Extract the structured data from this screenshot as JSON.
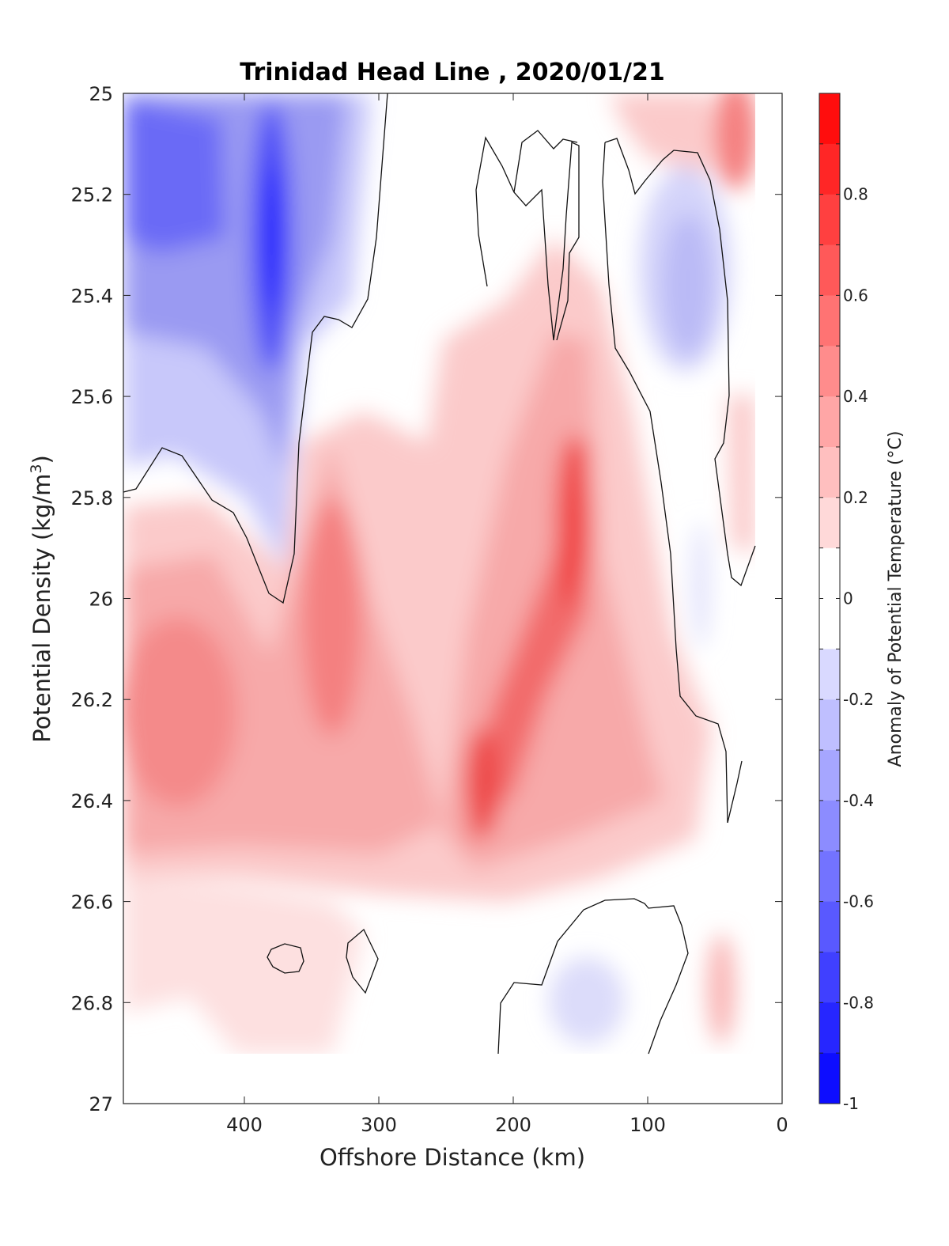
{
  "chart_data": {
    "type": "heatmap",
    "subtype": "filled-contour",
    "title": "Trinidad Head Line , 2020/01/21",
    "xlabel": "Offshore Distance (km)",
    "ylabel_text": "Potential Density (kg/m",
    "ylabel_sup": "3",
    "ylabel_close": ")",
    "xlim": [
      490,
      0
    ],
    "ylim": [
      25,
      27
    ],
    "y_reversed": true,
    "xticks": [
      "400",
      "300",
      "200",
      "100",
      "0"
    ],
    "yticks": [
      "25",
      "25.2",
      "25.4",
      "25.6",
      "25.8",
      "26",
      "26.2",
      "26.4",
      "26.6",
      "26.8",
      "27"
    ],
    "colorbar": {
      "label": "Anomaly of Potential Temperature (°C)",
      "range": [
        -1,
        1
      ],
      "levels": 20,
      "ticks": [
        "0.8",
        "0.6",
        "0.4",
        "0.2",
        "0",
        "-0.2",
        "-0.4",
        "-0.6",
        "-0.8",
        "-1"
      ],
      "colormap": "blue-white-red",
      "low_color": "#0000ff",
      "mid_color": "#ffffff",
      "high_color": "#ff0000"
    },
    "data_extent": {
      "x_max": 490,
      "x_min": 20,
      "density_max": 26.9
    },
    "features": [
      {
        "kind": "cold_core",
        "x": 380,
        "density": 25.3,
        "anomaly": -0.85
      },
      {
        "kind": "cold_core",
        "x": 470,
        "density": 25.15,
        "anomaly": -0.6
      },
      {
        "kind": "warm_core",
        "x": 160,
        "density": 25.9,
        "anomaly": 0.75
      },
      {
        "kind": "warm_core",
        "x": 225,
        "density": 26.35,
        "anomaly": 0.65
      },
      {
        "kind": "warm_core",
        "x": 325,
        "density": 26.05,
        "anomaly": 0.5
      },
      {
        "kind": "warm_core",
        "x": 455,
        "density": 26.25,
        "anomaly": 0.45
      },
      {
        "kind": "warm_core",
        "x": 40,
        "density": 25.05,
        "anomaly": 0.55
      },
      {
        "kind": "cold_core",
        "x": 70,
        "density": 25.35,
        "anomaly": -0.25
      },
      {
        "kind": "cold_core",
        "x": 150,
        "density": 26.8,
        "anomaly": -0.15
      }
    ],
    "zero_contour": true
  }
}
